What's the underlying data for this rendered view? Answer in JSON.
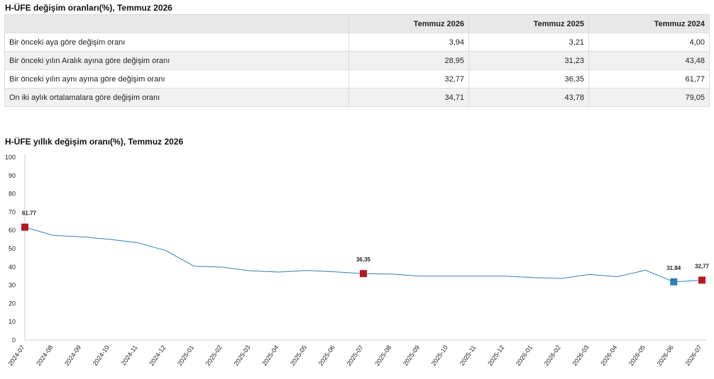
{
  "table_title": "H-ÜFE değişim oranları(%), Temmuz 2026",
  "table": {
    "columns": [
      "",
      "Temmuz 2026",
      "Temmuz 2025",
      "Temmuz 2024"
    ],
    "rows": [
      {
        "label": "Bir önceki aya göre değişim oranı",
        "values": [
          "3,94",
          "3,21",
          "4,00"
        ]
      },
      {
        "label": "Bir önceki yılın Aralık ayına göre değişim oranı",
        "values": [
          "28,95",
          "31,23",
          "43,48"
        ]
      },
      {
        "label": "Bir önceki yılın aynı ayına göre değişim oranı",
        "values": [
          "32,77",
          "36,35",
          "61,77"
        ]
      },
      {
        "label": "On iki aylık ortalamalara göre değişim oranı",
        "values": [
          "34,71",
          "43,78",
          "79,05"
        ]
      }
    ]
  },
  "chart_title": "H-ÜFE yıllık değişim oranı(%), Temmuz 2026",
  "chart_data": {
    "type": "line",
    "title": "H-ÜFE yıllık değişim oranı(%), Temmuz 2026",
    "xlabel": "",
    "ylabel": "",
    "ylim": [
      0,
      100
    ],
    "yticks": [
      "0",
      "10",
      "20",
      "30",
      "40",
      "50",
      "60",
      "70",
      "80",
      "90",
      "100"
    ],
    "grid": false,
    "x": [
      "2024-07",
      "2024-08",
      "2024-09",
      "2024-10",
      "2024-11",
      "2024-12",
      "2025-01",
      "2025-02",
      "2025-03",
      "2025-04",
      "2025-05",
      "2025-06",
      "2025-07",
      "2025-08",
      "2025-09",
      "2025-10",
      "2025-11",
      "2025-12",
      "2026-01",
      "2026-02",
      "2026-03",
      "2026-04",
      "2026-05",
      "2026-06",
      "2026-07"
    ],
    "series": [
      {
        "values": [
          61.77,
          57.3,
          56.5,
          55.1,
          53.2,
          48.9,
          40.4,
          39.9,
          37.9,
          37.2,
          38.1,
          37.3,
          36.35,
          36.1,
          35.0,
          35.0,
          35.0,
          35.0,
          34.2,
          33.7,
          35.9,
          34.7,
          38.2,
          31.84,
          32.77
        ],
        "color": "#2d7fb8"
      }
    ],
    "highlighted_points": [
      {
        "x": "2024-07",
        "value": 61.77,
        "label": "61.77",
        "color": "#b5191f"
      },
      {
        "x": "2025-07",
        "value": 36.35,
        "label": "36,35",
        "color": "#b5191f"
      },
      {
        "x": "2026-06",
        "value": 31.84,
        "label": "31.84",
        "color": "#2d7fb8"
      },
      {
        "x": "2026-07",
        "value": 32.77,
        "label": "32,77",
        "color": "#b5191f"
      }
    ]
  }
}
